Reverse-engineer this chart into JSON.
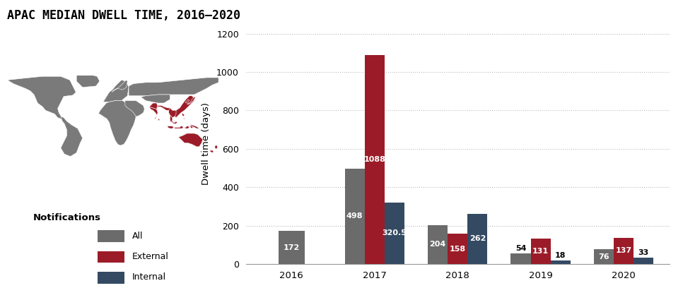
{
  "title": "APAC MEDIAN DWELL TIME, 2016–2020",
  "years": [
    "2016",
    "2017",
    "2018",
    "2019",
    "2020"
  ],
  "all_values": [
    172,
    498,
    204,
    54,
    76
  ],
  "external_values": [
    null,
    1088,
    158,
    131,
    137
  ],
  "internal_values": [
    null,
    320.5,
    262,
    18,
    33
  ],
  "bar_width": 0.24,
  "color_all": "#6b6b6b",
  "color_external": "#9b1c28",
  "color_internal": "#344a63",
  "ylabel": "Dwell time (days)",
  "ylim": [
    0,
    1250
  ],
  "yticks": [
    0,
    200,
    400,
    600,
    800,
    1000,
    1200
  ],
  "grid_color": "#bbbbbb",
  "bg_color": "#ffffff",
  "legend_labels": [
    "All",
    "External",
    "Internal"
  ],
  "legend_title": "Notifications",
  "title_fontsize": 12,
  "label_fontsize": 8,
  "map_gray": "#7a7a7a",
  "map_red": "#9b1c28"
}
